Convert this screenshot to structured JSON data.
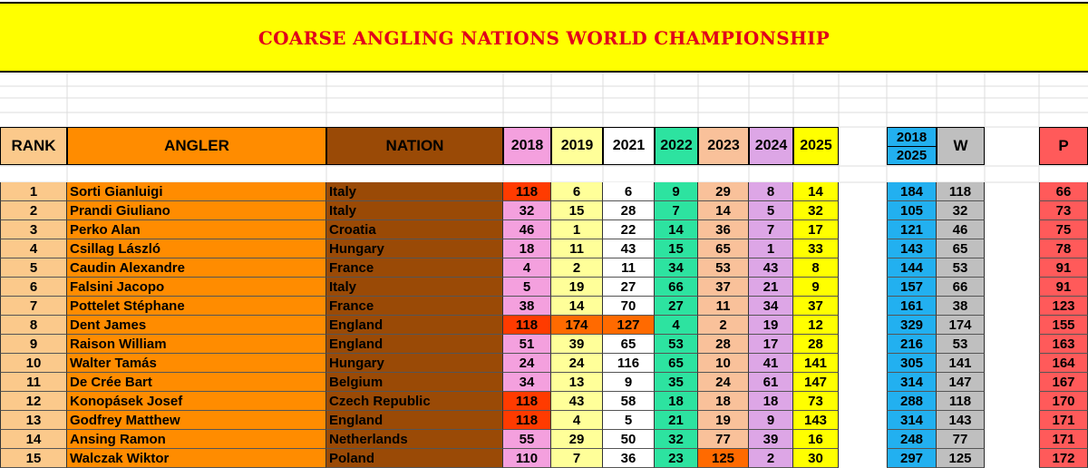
{
  "title": "COARSE ANGLING NATIONS WORLD CHAMPIONSHIP",
  "headers": {
    "rank": "RANK",
    "angler": "ANGLER",
    "nation": "NATION",
    "years": [
      "2018",
      "2019",
      "2021",
      "2022",
      "2023",
      "2024",
      "2025"
    ],
    "range_top": "2018",
    "range_bottom": "2025",
    "w": "W",
    "p": "P"
  },
  "colors": {
    "title_bg": "#ffff00",
    "title_text": "#e0001b",
    "rank_bg": "#fbc98b",
    "angler_bg": "#ff8c00",
    "nation_bg": "#9a4a06",
    "y2018": "#f4a0de",
    "y2019": "#ffff99",
    "y2021": "#ffffff",
    "y2022": "#2de3a0",
    "y2023": "#f9c19a",
    "y2024": "#dda6e6",
    "y2025": "#ffff00",
    "total_bg": "#22b0f0",
    "w_bg": "#bfbfbf",
    "p_bg": "#ff5a5a",
    "drop_red": "#ff3b00",
    "drop_orange": "#ff6a00"
  },
  "rows": [
    {
      "rank": "1",
      "angler": "Sorti Gianluigi",
      "nation": "Italy",
      "scores": [
        "118",
        "6",
        "6",
        "9",
        "29",
        "8",
        "14"
      ],
      "total": "184",
      "w": "118",
      "p": "66",
      "hl": [
        "red",
        "",
        "",
        "",
        "",
        "",
        ""
      ]
    },
    {
      "rank": "2",
      "angler": "Prandi Giuliano",
      "nation": "Italy",
      "scores": [
        "32",
        "15",
        "28",
        "7",
        "14",
        "5",
        "32"
      ],
      "total": "105",
      "w": "32",
      "p": "73",
      "hl": [
        "",
        "",
        "",
        "",
        "",
        "",
        ""
      ]
    },
    {
      "rank": "3",
      "angler": "Perko Alan",
      "nation": "Croatia",
      "scores": [
        "46",
        "1",
        "22",
        "14",
        "36",
        "7",
        "17"
      ],
      "total": "121",
      "w": "46",
      "p": "75",
      "hl": [
        "",
        "",
        "",
        "",
        "",
        "",
        ""
      ]
    },
    {
      "rank": "4",
      "angler": "Csillag László",
      "nation": "Hungary",
      "scores": [
        "18",
        "11",
        "43",
        "15",
        "65",
        "1",
        "33"
      ],
      "total": "143",
      "w": "65",
      "p": "78",
      "hl": [
        "",
        "",
        "",
        "",
        "",
        "",
        ""
      ]
    },
    {
      "rank": "5",
      "angler": "Caudin Alexandre",
      "nation": "France",
      "scores": [
        "4",
        "2",
        "11",
        "34",
        "53",
        "43",
        "8"
      ],
      "total": "144",
      "w": "53",
      "p": "91",
      "hl": [
        "",
        "",
        "",
        "",
        "",
        "",
        ""
      ]
    },
    {
      "rank": "6",
      "angler": "Falsini Jacopo",
      "nation": "Italy",
      "scores": [
        "5",
        "19",
        "27",
        "66",
        "37",
        "21",
        "9"
      ],
      "total": "157",
      "w": "66",
      "p": "91",
      "hl": [
        "",
        "",
        "",
        "",
        "",
        "",
        ""
      ]
    },
    {
      "rank": "7",
      "angler": "Pottelet Stéphane",
      "nation": "France",
      "scores": [
        "38",
        "14",
        "70",
        "27",
        "11",
        "34",
        "37"
      ],
      "total": "161",
      "w": "38",
      "p": "123",
      "hl": [
        "",
        "",
        "",
        "",
        "",
        "",
        ""
      ]
    },
    {
      "rank": "8",
      "angler": "Dent James",
      "nation": "England",
      "scores": [
        "118",
        "174",
        "127",
        "4",
        "2",
        "19",
        "12"
      ],
      "total": "329",
      "w": "174",
      "p": "155",
      "hl": [
        "red",
        "orange",
        "orange",
        "",
        "",
        "",
        ""
      ]
    },
    {
      "rank": "9",
      "angler": "Raison William",
      "nation": "England",
      "scores": [
        "51",
        "39",
        "65",
        "53",
        "28",
        "17",
        "28"
      ],
      "total": "216",
      "w": "53",
      "p": "163",
      "hl": [
        "",
        "",
        "",
        "",
        "",
        "",
        ""
      ]
    },
    {
      "rank": "10",
      "angler": "Walter Tamás",
      "nation": "Hungary",
      "scores": [
        "24",
        "24",
        "116",
        "65",
        "10",
        "41",
        "141"
      ],
      "total": "305",
      "w": "141",
      "p": "164",
      "hl": [
        "",
        "",
        "",
        "",
        "",
        "",
        ""
      ]
    },
    {
      "rank": "11",
      "angler": "De Crée Bart",
      "nation": "Belgium",
      "scores": [
        "34",
        "13",
        "9",
        "35",
        "24",
        "61",
        "147"
      ],
      "total": "314",
      "w": "147",
      "p": "167",
      "hl": [
        "",
        "",
        "",
        "",
        "",
        "",
        ""
      ]
    },
    {
      "rank": "12",
      "angler": "Konopásek Josef",
      "nation": "Czech Republic",
      "scores": [
        "118",
        "43",
        "58",
        "18",
        "18",
        "18",
        "73"
      ],
      "total": "288",
      "w": "118",
      "p": "170",
      "hl": [
        "red",
        "",
        "",
        "",
        "",
        "",
        ""
      ]
    },
    {
      "rank": "13",
      "angler": "Godfrey Matthew",
      "nation": "England",
      "scores": [
        "118",
        "4",
        "5",
        "21",
        "19",
        "9",
        "143"
      ],
      "total": "314",
      "w": "143",
      "p": "171",
      "hl": [
        "red",
        "",
        "",
        "",
        "",
        "",
        ""
      ]
    },
    {
      "rank": "14",
      "angler": "Ansing Ramon",
      "nation": "Netherlands",
      "scores": [
        "55",
        "29",
        "50",
        "32",
        "77",
        "39",
        "16"
      ],
      "total": "248",
      "w": "77",
      "p": "171",
      "hl": [
        "",
        "",
        "",
        "",
        "",
        "",
        ""
      ]
    },
    {
      "rank": "15",
      "angler": "Walczak Wiktor",
      "nation": "Poland",
      "scores": [
        "110",
        "7",
        "36",
        "23",
        "125",
        "2",
        "30"
      ],
      "total": "297",
      "w": "125",
      "p": "172",
      "hl": [
        "",
        "",
        "",
        "",
        "orange",
        "",
        ""
      ]
    }
  ]
}
